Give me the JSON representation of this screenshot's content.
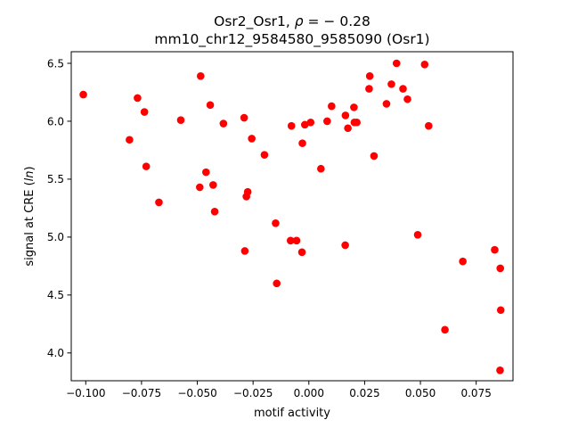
{
  "chart_data": {
    "type": "scatter",
    "title_line1_text": "Osr2_Osr1, ",
    "title_line1_rho": "ρ",
    "title_line1_eq": " = − 0.28",
    "title_line2": "mm10_chr12_9584580_9585090 (Osr1)",
    "xlabel": "motif activity",
    "ylabel_prefix": "signal at CRE (",
    "ylabel_italic": "ln",
    "ylabel_suffix": ")",
    "xlim": [
      -0.1065,
      0.0915
    ],
    "ylim": [
      3.76,
      6.6
    ],
    "xticks": [
      -0.1,
      -0.075,
      -0.05,
      -0.025,
      0.0,
      0.025,
      0.05,
      0.075
    ],
    "xtick_labels": [
      "−0.100",
      "−0.075",
      "−0.050",
      "−0.025",
      "0.000",
      "0.025",
      "0.050",
      "0.075"
    ],
    "yticks": [
      4.0,
      4.5,
      5.0,
      5.5,
      6.0,
      6.5
    ],
    "ytick_labels": [
      "4.0",
      "4.5",
      "5.0",
      "5.5",
      "6.0",
      "6.5"
    ],
    "grid": false,
    "marker_color": "#ff0000",
    "points": [
      [
        -0.1011,
        6.23
      ],
      [
        -0.0804,
        5.84
      ],
      [
        -0.0768,
        6.2
      ],
      [
        -0.0737,
        6.08
      ],
      [
        -0.0729,
        5.61
      ],
      [
        -0.0672,
        5.3
      ],
      [
        -0.0574,
        6.01
      ],
      [
        -0.0485,
        6.39
      ],
      [
        -0.0489,
        5.43
      ],
      [
        -0.0461,
        5.56
      ],
      [
        -0.0442,
        6.14
      ],
      [
        -0.0429,
        5.45
      ],
      [
        -0.0422,
        5.22
      ],
      [
        -0.0383,
        5.98
      ],
      [
        -0.029,
        6.03
      ],
      [
        -0.0287,
        4.88
      ],
      [
        -0.028,
        5.35
      ],
      [
        -0.0274,
        5.39
      ],
      [
        -0.0256,
        5.85
      ],
      [
        -0.0199,
        5.71
      ],
      [
        -0.0149,
        5.12
      ],
      [
        -0.0144,
        4.6
      ],
      [
        -0.0082,
        4.97
      ],
      [
        -0.0078,
        5.96
      ],
      [
        -0.0055,
        4.97
      ],
      [
        -0.0031,
        4.87
      ],
      [
        -0.0029,
        5.81
      ],
      [
        -0.0018,
        5.97
      ],
      [
        0.0008,
        5.99
      ],
      [
        0.0054,
        5.59
      ],
      [
        0.0082,
        6.0
      ],
      [
        0.0102,
        6.13
      ],
      [
        0.0163,
        4.93
      ],
      [
        0.0164,
        6.05
      ],
      [
        0.0175,
        5.94
      ],
      [
        0.0202,
        6.12
      ],
      [
        0.0204,
        5.99
      ],
      [
        0.0215,
        5.99
      ],
      [
        0.027,
        6.28
      ],
      [
        0.0273,
        6.39
      ],
      [
        0.0292,
        5.7
      ],
      [
        0.0348,
        6.15
      ],
      [
        0.037,
        6.32
      ],
      [
        0.0393,
        6.5
      ],
      [
        0.0422,
        6.28
      ],
      [
        0.0442,
        6.19
      ],
      [
        0.0488,
        5.02
      ],
      [
        0.0519,
        6.49
      ],
      [
        0.0537,
        5.96
      ],
      [
        0.061,
        4.2
      ],
      [
        0.069,
        4.79
      ],
      [
        0.0833,
        4.89
      ],
      [
        0.0858,
        4.73
      ],
      [
        0.086,
        4.37
      ],
      [
        0.0857,
        3.85
      ]
    ]
  }
}
